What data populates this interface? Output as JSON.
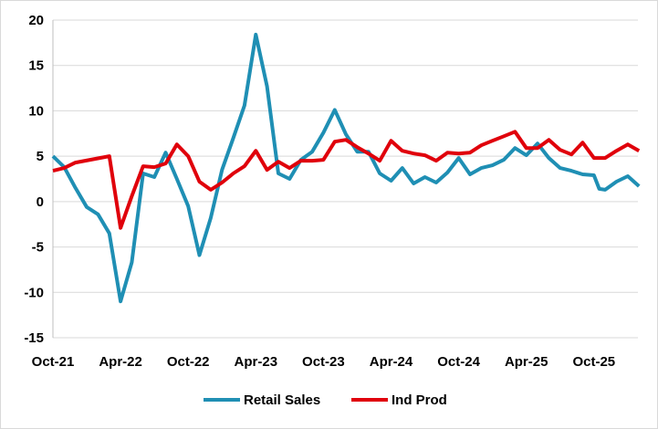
{
  "chart_data": {
    "type": "line",
    "title": "",
    "xlabel": "",
    "ylabel": "",
    "ylim": [
      -15,
      20
    ],
    "yticks": [
      -15,
      -10,
      -5,
      0,
      5,
      10,
      15,
      20
    ],
    "xticks": [
      "Oct-21",
      "Apr-22",
      "Oct-22",
      "Apr-23",
      "Oct-23",
      "Apr-24",
      "Oct-24",
      "Apr-25",
      "Oct-25"
    ],
    "grid": "horizontal",
    "legend_position": "bottom",
    "series": [
      {
        "name": "Retail Sales",
        "color": "#1f8fb4",
        "points": [
          [
            "2021-10",
            5.0
          ],
          [
            "2021-11",
            3.8
          ],
          [
            "2021-12",
            1.5
          ],
          [
            "2022-01",
            -0.6
          ],
          [
            "2022-02",
            -1.4
          ],
          [
            "2022-03",
            -3.5
          ],
          [
            "2022-04",
            -11.0
          ],
          [
            "2022-05",
            -6.7
          ],
          [
            "2022-06",
            3.1
          ],
          [
            "2022-07",
            2.7
          ],
          [
            "2022-08",
            5.4
          ],
          [
            "2022-09",
            2.5
          ],
          [
            "2022-10",
            -0.5
          ],
          [
            "2022-11",
            -5.9
          ],
          [
            "2022-12",
            -1.8
          ],
          [
            "2023-01",
            3.5
          ],
          [
            "2023-02",
            7.0
          ],
          [
            "2023-03",
            10.6
          ],
          [
            "2023-04",
            18.4
          ],
          [
            "2023-05",
            12.7
          ],
          [
            "2023-06",
            3.1
          ],
          [
            "2023-07",
            2.5
          ],
          [
            "2023-08",
            4.6
          ],
          [
            "2023-09",
            5.5
          ],
          [
            "2023-10",
            7.6
          ],
          [
            "2023-11",
            10.1
          ],
          [
            "2023-12",
            7.4
          ],
          [
            "2024-01",
            5.5
          ],
          [
            "2024-02",
            5.5
          ],
          [
            "2024-03",
            3.1
          ],
          [
            "2024-04",
            2.3
          ],
          [
            "2024-05",
            3.7
          ],
          [
            "2024-06",
            2.0
          ],
          [
            "2024-07",
            2.7
          ],
          [
            "2024-08",
            2.1
          ],
          [
            "2024-09",
            3.2
          ],
          [
            "2024-10",
            4.8
          ],
          [
            "2024-11",
            3.0
          ],
          [
            "2024-12",
            3.7
          ],
          [
            "2025-01",
            4.0
          ],
          [
            "2025-02",
            4.6
          ],
          [
            "2025-03",
            5.9
          ],
          [
            "2025-04",
            5.1
          ],
          [
            "2025-05",
            6.4
          ],
          [
            "2025-06",
            4.8
          ],
          [
            "2025-07",
            3.7
          ],
          [
            "2025-08",
            3.4
          ],
          [
            "2025-09",
            3.0
          ],
          [
            "2025-10",
            2.9
          ],
          [
            "2025-10-15",
            1.4
          ],
          [
            "2025-11",
            1.3
          ],
          [
            "2025-12",
            2.2
          ],
          [
            "2026-01",
            2.8
          ],
          [
            "2026-02",
            1.7
          ]
        ]
      },
      {
        "name": "Ind Prod",
        "color": "#e0000b",
        "points": [
          [
            "2021-10",
            3.4
          ],
          [
            "2021-11",
            3.7
          ],
          [
            "2021-12",
            4.3
          ],
          [
            "2022-03",
            5.0
          ],
          [
            "2022-04",
            -2.9
          ],
          [
            "2022-05",
            0.6
          ],
          [
            "2022-06",
            3.9
          ],
          [
            "2022-07",
            3.8
          ],
          [
            "2022-08",
            4.2
          ],
          [
            "2022-09",
            6.3
          ],
          [
            "2022-10",
            5.0
          ],
          [
            "2022-11",
            2.2
          ],
          [
            "2022-12",
            1.3
          ],
          [
            "2023-01",
            2.1
          ],
          [
            "2023-02",
            3.1
          ],
          [
            "2023-03",
            3.9
          ],
          [
            "2023-04",
            5.6
          ],
          [
            "2023-05",
            3.5
          ],
          [
            "2023-06",
            4.4
          ],
          [
            "2023-07",
            3.7
          ],
          [
            "2023-08",
            4.5
          ],
          [
            "2023-09",
            4.5
          ],
          [
            "2023-10",
            4.6
          ],
          [
            "2023-11",
            6.6
          ],
          [
            "2023-12",
            6.8
          ],
          [
            "2024-01",
            6.0
          ],
          [
            "2024-02",
            5.3
          ],
          [
            "2024-03",
            4.5
          ],
          [
            "2024-04",
            6.7
          ],
          [
            "2024-05",
            5.6
          ],
          [
            "2024-06",
            5.3
          ],
          [
            "2024-07",
            5.1
          ],
          [
            "2024-08",
            4.5
          ],
          [
            "2024-09",
            5.4
          ],
          [
            "2024-10",
            5.3
          ],
          [
            "2024-11",
            5.4
          ],
          [
            "2024-12",
            6.2
          ],
          [
            "2025-01",
            6.7
          ],
          [
            "2025-02",
            7.2
          ],
          [
            "2025-03",
            7.7
          ],
          [
            "2025-04",
            5.9
          ],
          [
            "2025-05",
            5.9
          ],
          [
            "2025-06",
            6.8
          ],
          [
            "2025-07",
            5.7
          ],
          [
            "2025-08",
            5.2
          ],
          [
            "2025-09",
            6.5
          ],
          [
            "2025-10",
            4.8
          ],
          [
            "2025-11",
            4.8
          ],
          [
            "2025-12",
            5.6
          ],
          [
            "2026-01",
            6.3
          ],
          [
            "2026-02",
            5.6
          ]
        ]
      }
    ]
  }
}
